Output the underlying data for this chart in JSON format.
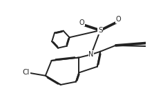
{
  "bg_color": "#ffffff",
  "line_color": "#222222",
  "line_width": 1.4,
  "fig_width": 2.36,
  "fig_height": 1.48,
  "dpi": 100,
  "xlim": [
    0,
    10
  ],
  "ylim": [
    0,
    6.3
  ]
}
